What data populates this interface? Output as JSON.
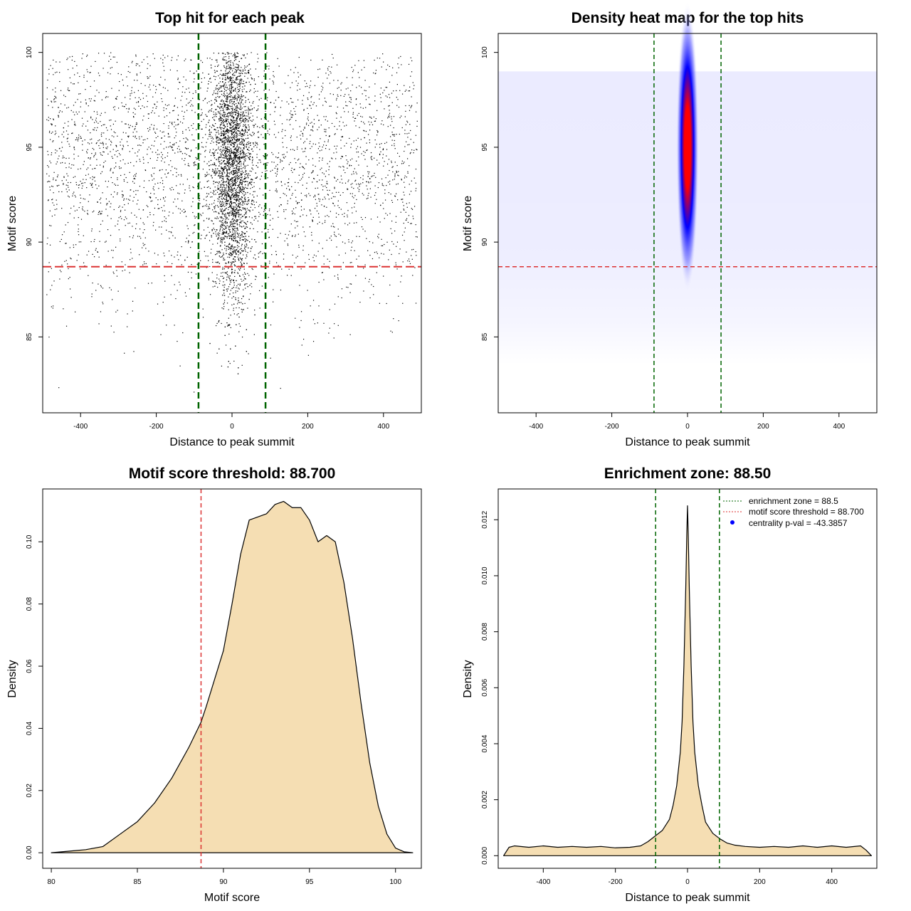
{
  "chart_data": [
    {
      "type": "scatter",
      "title": "Top hit for each peak",
      "xlabel": "Distance to peak summit",
      "ylabel": "Motif score",
      "xlim": [
        -500,
        500
      ],
      "ylim": [
        81,
        101
      ],
      "xticks": [
        "-400",
        "-200",
        "0",
        "200",
        "400"
      ],
      "yticks": [
        "85",
        "90",
        "95",
        "100"
      ],
      "xtick_values": [
        -400,
        -200,
        0,
        200,
        400
      ],
      "ytick_values": [
        85,
        90,
        95,
        100
      ],
      "vlines": [
        -88.5,
        88.5
      ],
      "hline": 88.7,
      "vline_color": "#006400",
      "hline_color": "#dc3232",
      "point_color": "#000000",
      "background_points": 3200,
      "central_points": 3600,
      "central_sd": 26,
      "score_range": [
        81,
        100
      ]
    },
    {
      "type": "heatmap",
      "title": "Density heat map for the top hits",
      "xlabel": "Distance to peak summit",
      "ylabel": "Motif score",
      "xlim": [
        -500,
        500
      ],
      "ylim": [
        81,
        101
      ],
      "xticks": [
        "-400",
        "-200",
        "0",
        "200",
        "400"
      ],
      "yticks": [
        "85",
        "90",
        "95",
        "100"
      ],
      "xtick_values": [
        -400,
        -200,
        0,
        200,
        400
      ],
      "ytick_values": [
        85,
        90,
        95,
        100
      ],
      "vlines": [
        -88.5,
        88.5
      ],
      "hline": 88.7,
      "color_scale": [
        "#ffffff",
        "#0000ff",
        "#ff0000"
      ],
      "peak_center": [
        0,
        95
      ],
      "peak_spread": [
        10,
        3.2
      ]
    },
    {
      "type": "area",
      "title": "Motif score threshold: 88.700",
      "xlabel": "Motif score",
      "ylabel": "Density",
      "xlim": [
        79.5,
        101.5
      ],
      "ylim": [
        -0.005,
        0.117
      ],
      "xticks": [
        "80",
        "85",
        "90",
        "95",
        "100"
      ],
      "yticks": [
        "0.00",
        "0.02",
        "0.04",
        "0.06",
        "0.08",
        "0.10"
      ],
      "xtick_values": [
        80,
        85,
        90,
        95,
        100
      ],
      "ytick_values": [
        0,
        0.02,
        0.04,
        0.06,
        0.08,
        0.1
      ],
      "vline": 88.7,
      "fill_color": "#f5deb3",
      "x": [
        80,
        81,
        82,
        83,
        84,
        85,
        86,
        87,
        88,
        88.7,
        89,
        90,
        90.5,
        91,
        91.5,
        92,
        92.5,
        93,
        93.5,
        94,
        94.5,
        95,
        95.5,
        96,
        96.5,
        97,
        97.5,
        98,
        98.5,
        99,
        99.5,
        100,
        100.5,
        101
      ],
      "y": [
        0.0,
        0.0005,
        0.001,
        0.002,
        0.006,
        0.01,
        0.016,
        0.024,
        0.034,
        0.042,
        0.047,
        0.065,
        0.08,
        0.096,
        0.107,
        0.108,
        0.109,
        0.112,
        0.113,
        0.111,
        0.111,
        0.107,
        0.1,
        0.102,
        0.1,
        0.087,
        0.069,
        0.048,
        0.029,
        0.015,
        0.006,
        0.0015,
        0.0003,
        0.0
      ]
    },
    {
      "type": "area",
      "title": "Enrichment zone: 88.50",
      "xlabel": "Distance to peak summit",
      "ylabel": "Density",
      "xlim": [
        -525,
        525
      ],
      "ylim": [
        -0.00045,
        0.0131
      ],
      "xticks": [
        "-400",
        "-200",
        "0",
        "200",
        "400"
      ],
      "yticks": [
        "0.000",
        "0.002",
        "0.004",
        "0.006",
        "0.008",
        "0.010",
        "0.012"
      ],
      "xtick_values": [
        -400,
        -200,
        0,
        200,
        400
      ],
      "ytick_values": [
        0,
        0.002,
        0.004,
        0.006,
        0.008,
        0.01,
        0.012
      ],
      "vlines": [
        -88.5,
        88.5
      ],
      "fill_color": "#f5deb3",
      "legend_position": "top-right",
      "legend": [
        {
          "label": "enrichment zone = 88.5",
          "color": "#006400",
          "style": "dotted-line"
        },
        {
          "label": "motif score threshold = 88.700",
          "color": "#dc3232",
          "style": "dotted-line"
        },
        {
          "label": "centrality p-val = -43.3857",
          "color": "#0000ff",
          "style": "dot"
        }
      ],
      "x": [
        -510,
        -495,
        -480,
        -440,
        -400,
        -360,
        -320,
        -280,
        -240,
        -200,
        -160,
        -130,
        -110,
        -90,
        -70,
        -50,
        -40,
        -30,
        -20,
        -15,
        -10,
        -5,
        -2,
        0,
        2,
        5,
        10,
        15,
        20,
        30,
        40,
        50,
        70,
        90,
        110,
        130,
        160,
        200,
        240,
        280,
        320,
        360,
        400,
        440,
        480,
        495,
        510
      ],
      "y": [
        0.0,
        0.0003,
        0.00035,
        0.0003,
        0.00035,
        0.0003,
        0.00033,
        0.0003,
        0.00033,
        0.00028,
        0.0003,
        0.00035,
        0.0005,
        0.0007,
        0.0009,
        0.0013,
        0.0018,
        0.0025,
        0.0037,
        0.0048,
        0.0068,
        0.0095,
        0.0115,
        0.0125,
        0.0115,
        0.0095,
        0.0068,
        0.0048,
        0.0037,
        0.0025,
        0.0018,
        0.0012,
        0.0008,
        0.0006,
        0.00045,
        0.00038,
        0.00033,
        0.0003,
        0.00033,
        0.0003,
        0.00035,
        0.0003,
        0.00035,
        0.0003,
        0.00035,
        0.0002,
        0.0
      ]
    }
  ]
}
